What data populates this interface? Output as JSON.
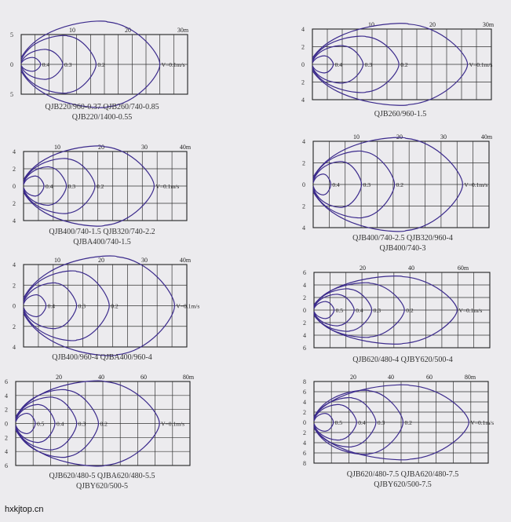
{
  "watermark": "hxkjtop.cn",
  "chart_data": [
    {
      "type": "line",
      "caption_lines": [
        "QJB220/960-0.37  QJB260/740-0.85",
        "QJB220/1400-0.55"
      ],
      "x_ticks": [
        10,
        20,
        30
      ],
      "x_unit": "m",
      "y_ticks": [
        5,
        0,
        5
      ],
      "xlim": [
        0,
        30
      ],
      "series": [
        {
          "name": "0.4",
          "reach": 3.5,
          "half_width": 1.2
        },
        {
          "name": "0.3",
          "reach": 7.5,
          "half_width": 2.6
        },
        {
          "name": "0.2",
          "reach": 13.5,
          "half_width": 5.0
        },
        {
          "name": "V=0.1m/s",
          "reach": 25,
          "half_width": 7.5
        }
      ]
    },
    {
      "type": "line",
      "caption_lines": [
        "QJB260/960-1.5"
      ],
      "x_ticks": [
        10,
        20,
        30
      ],
      "x_unit": "m",
      "y_ticks": [
        4,
        2,
        0,
        2,
        4
      ],
      "xlim": [
        0,
        30
      ],
      "series": [
        {
          "name": "0.4",
          "reach": 3.5,
          "half_width": 1.0
        },
        {
          "name": "0.3",
          "reach": 8.5,
          "half_width": 2.2
        },
        {
          "name": "0.2",
          "reach": 14.5,
          "half_width": 3.3
        },
        {
          "name": "V=0.1m/s",
          "reach": 26,
          "half_width": 4.8
        }
      ]
    },
    {
      "type": "line",
      "caption_lines": [
        "QJB400/740-1.5  QJB320/740-2.2",
        "QJBA400/740-1.5"
      ],
      "x_ticks": [
        10,
        20,
        30,
        40
      ],
      "x_unit": "m",
      "y_ticks": [
        4,
        2,
        0,
        2,
        4
      ],
      "xlim": [
        0,
        40
      ],
      "series": [
        {
          "name": "0.4",
          "reach": 5,
          "half_width": 1.2
        },
        {
          "name": "0.3",
          "reach": 10.5,
          "half_width": 2.3
        },
        {
          "name": "0.2",
          "reach": 17.5,
          "half_width": 3.3
        },
        {
          "name": "V=0.1m/s",
          "reach": 32,
          "half_width": 4.8
        }
      ]
    },
    {
      "type": "line",
      "caption_lines": [
        "QJB400/740-2.5  QJB320/960-4",
        "QJB400/740-3"
      ],
      "x_ticks": [
        10,
        20,
        30,
        40
      ],
      "x_unit": "m",
      "y_ticks": [
        4,
        2,
        0,
        2,
        4
      ],
      "xlim": [
        0,
        40
      ],
      "series": [
        {
          "name": "0.4",
          "reach": 4,
          "half_width": 1.0
        },
        {
          "name": "0.3",
          "reach": 11,
          "half_width": 2.2
        },
        {
          "name": "0.2",
          "reach": 18.5,
          "half_width": 3.2
        },
        {
          "name": "V=0.1m/s",
          "reach": 34,
          "half_width": 4.5
        }
      ]
    },
    {
      "type": "line",
      "caption_lines": [
        "QJB400/960-4  QJBA400/960-4"
      ],
      "x_ticks": [
        10,
        20,
        30,
        40
      ],
      "x_unit": "m",
      "y_ticks": [
        4,
        2,
        0,
        2,
        4
      ],
      "xlim": [
        0,
        40
      ],
      "series": [
        {
          "name": "0.4",
          "reach": 5.5,
          "half_width": 1.1
        },
        {
          "name": "0.3",
          "reach": 13,
          "half_width": 2.3
        },
        {
          "name": "0.2",
          "reach": 21,
          "half_width": 3.5
        },
        {
          "name": "V=0.1m/s",
          "reach": 37,
          "half_width": 5.0
        }
      ]
    },
    {
      "type": "line",
      "caption_lines": [
        "QJB620/480-4  QJBY620/500-4"
      ],
      "x_ticks": [
        20,
        40,
        60
      ],
      "x_unit": "m",
      "y_ticks": [
        6,
        4,
        2,
        0,
        2,
        4,
        6
      ],
      "xlim": [
        0,
        70
      ],
      "series": [
        {
          "name": "0.5",
          "reach": 8,
          "half_width": 1.4
        },
        {
          "name": "0.4",
          "reach": 16,
          "half_width": 2.6
        },
        {
          "name": "0.3",
          "reach": 23,
          "half_width": 3.5
        },
        {
          "name": "0.2",
          "reach": 36,
          "half_width": 4.5
        },
        {
          "name": "V=0.1m/s",
          "reach": 57,
          "half_width": 5.6
        }
      ]
    },
    {
      "type": "line",
      "caption_lines": [
        "QJB620/480-5  QJBA620/480-5.5",
        "QJBY620/500-5"
      ],
      "x_ticks": [
        20,
        40,
        60,
        80
      ],
      "x_unit": "m",
      "y_ticks": [
        6,
        4,
        2,
        0,
        2,
        4,
        6
      ],
      "xlim": [
        0,
        80
      ],
      "series": [
        {
          "name": "0.5",
          "reach": 9,
          "half_width": 1.5
        },
        {
          "name": "0.4",
          "reach": 18,
          "half_width": 2.8
        },
        {
          "name": "0.3",
          "reach": 28,
          "half_width": 3.9
        },
        {
          "name": "0.2",
          "reach": 38,
          "half_width": 5.0
        },
        {
          "name": "V=0.1m/s",
          "reach": 66,
          "half_width": 6.3
        }
      ]
    },
    {
      "type": "line",
      "caption_lines": [
        "QJB620/480-7.5  QJBA620/480-7.5",
        "QJBY620/500-7.5"
      ],
      "x_ticks": [
        20,
        40,
        60,
        80
      ],
      "x_unit": "m",
      "y_ticks": [
        8,
        6,
        4,
        2,
        0,
        2,
        4,
        6,
        8
      ],
      "xlim": [
        0,
        90
      ],
      "series": [
        {
          "name": "0.5",
          "reach": 10,
          "half_width": 1.8
        },
        {
          "name": "0.4",
          "reach": 22,
          "half_width": 3.6
        },
        {
          "name": "0.3",
          "reach": 32,
          "half_width": 5.0
        },
        {
          "name": "0.2",
          "reach": 46,
          "half_width": 6.5
        },
        {
          "name": "V=0.1m/s",
          "reach": 80,
          "half_width": 7.6
        }
      ]
    }
  ]
}
